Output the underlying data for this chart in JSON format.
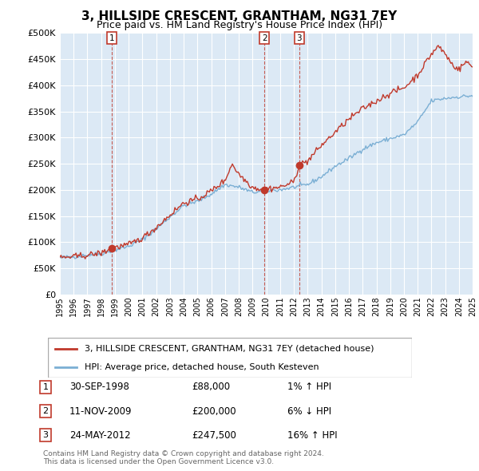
{
  "title": "3, HILLSIDE CRESCENT, GRANTHAM, NG31 7EY",
  "subtitle": "Price paid vs. HM Land Registry's House Price Index (HPI)",
  "ylim": [
    0,
    500000
  ],
  "yticks": [
    0,
    50000,
    100000,
    150000,
    200000,
    250000,
    300000,
    350000,
    400000,
    450000,
    500000
  ],
  "sale_dates": [
    1998.75,
    2009.86,
    2012.39
  ],
  "sale_prices": [
    88000,
    200000,
    247500
  ],
  "sale_labels": [
    "1",
    "2",
    "3"
  ],
  "hpi_line_color": "#7bafd4",
  "price_line_color": "#c0392b",
  "sale_point_color": "#c0392b",
  "background_color": "#dce9f5",
  "legend_label_price": "3, HILLSIDE CRESCENT, GRANTHAM, NG31 7EY (detached house)",
  "legend_label_hpi": "HPI: Average price, detached house, South Kesteven",
  "table_rows": [
    {
      "num": "1",
      "date": "30-SEP-1998",
      "price": "£88,000",
      "hpi": "1% ↑ HPI"
    },
    {
      "num": "2",
      "date": "11-NOV-2009",
      "price": "£200,000",
      "hpi": "6% ↓ HPI"
    },
    {
      "num": "3",
      "date": "24-MAY-2012",
      "price": "£247,500",
      "hpi": "16% ↑ HPI"
    }
  ],
  "footnote": "Contains HM Land Registry data © Crown copyright and database right 2024.\nThis data is licensed under the Open Government Licence v3.0.",
  "xmin": 1995,
  "xmax": 2025,
  "hpi_anchors": [
    [
      1995.0,
      70000
    ],
    [
      1996.0,
      72000
    ],
    [
      1997.0,
      75000
    ],
    [
      1998.0,
      78000
    ],
    [
      1999.0,
      85000
    ],
    [
      2000.0,
      92000
    ],
    [
      2001.0,
      105000
    ],
    [
      2002.0,
      125000
    ],
    [
      2003.0,
      148000
    ],
    [
      2004.0,
      170000
    ],
    [
      2005.0,
      178000
    ],
    [
      2006.0,
      192000
    ],
    [
      2007.0,
      210000
    ],
    [
      2008.0,
      205000
    ],
    [
      2009.0,
      195000
    ],
    [
      2010.0,
      198000
    ],
    [
      2011.0,
      200000
    ],
    [
      2012.0,
      205000
    ],
    [
      2013.0,
      210000
    ],
    [
      2014.0,
      225000
    ],
    [
      2015.0,
      245000
    ],
    [
      2016.0,
      260000
    ],
    [
      2017.0,
      278000
    ],
    [
      2018.0,
      290000
    ],
    [
      2019.0,
      298000
    ],
    [
      2020.0,
      305000
    ],
    [
      2021.0,
      330000
    ],
    [
      2022.0,
      370000
    ],
    [
      2023.0,
      375000
    ],
    [
      2024.0,
      378000
    ],
    [
      2025.0,
      380000
    ]
  ],
  "price_anchors": [
    [
      1995.0,
      70000
    ],
    [
      1996.0,
      72000
    ],
    [
      1997.0,
      75000
    ],
    [
      1998.0,
      79000
    ],
    [
      1998.75,
      88000
    ],
    [
      1999.0,
      90000
    ],
    [
      2000.0,
      95000
    ],
    [
      2001.0,
      108000
    ],
    [
      2002.0,
      128000
    ],
    [
      2003.0,
      152000
    ],
    [
      2004.0,
      175000
    ],
    [
      2005.0,
      182000
    ],
    [
      2006.0,
      198000
    ],
    [
      2007.0,
      218000
    ],
    [
      2007.5,
      250000
    ],
    [
      2008.0,
      230000
    ],
    [
      2009.0,
      205000
    ],
    [
      2009.86,
      200000
    ],
    [
      2010.0,
      202000
    ],
    [
      2011.0,
      205000
    ],
    [
      2012.0,
      215000
    ],
    [
      2012.39,
      247500
    ],
    [
      2013.0,
      255000
    ],
    [
      2014.0,
      285000
    ],
    [
      2015.0,
      310000
    ],
    [
      2016.0,
      335000
    ],
    [
      2017.0,
      355000
    ],
    [
      2018.0,
      370000
    ],
    [
      2019.0,
      385000
    ],
    [
      2020.0,
      395000
    ],
    [
      2021.0,
      420000
    ],
    [
      2022.0,
      460000
    ],
    [
      2022.5,
      475000
    ],
    [
      2023.0,
      460000
    ],
    [
      2023.5,
      440000
    ],
    [
      2024.0,
      430000
    ],
    [
      2024.5,
      445000
    ],
    [
      2025.0,
      435000
    ]
  ]
}
